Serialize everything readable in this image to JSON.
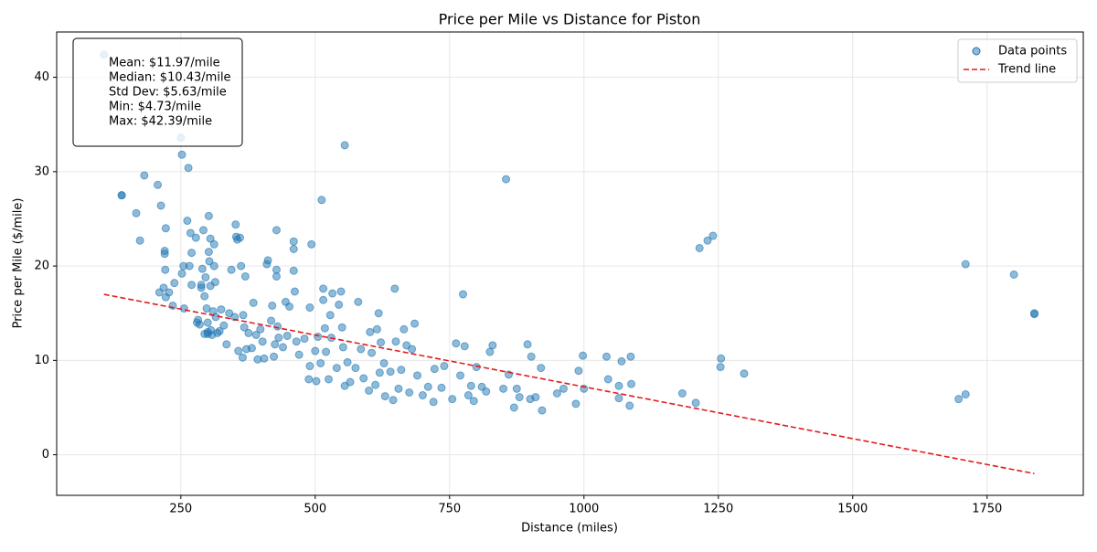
{
  "chart_data": {
    "type": "scatter",
    "title": "Price per Mile vs Distance for Piston",
    "x_label": "Distance (miles)",
    "y_label": "Price per Mile ($/mile)",
    "xlim": [
      19,
      1929
    ],
    "ylim": [
      -4.3,
      44.8
    ],
    "xticks": [
      250,
      500,
      750,
      1000,
      1250,
      1500,
      1750
    ],
    "yticks": [
      0,
      10,
      20,
      30,
      40
    ],
    "grid": true,
    "legend": "upper right",
    "stats": [
      "Mean: $11.97/mile",
      "Median: $10.43/mile",
      "Std Dev: $5.63/mile",
      "Min: $4.73/mile",
      "Max: $42.39/mile"
    ],
    "series": [
      {
        "name": "Data points",
        "type": "scatter",
        "color": "#1f77b4",
        "x": [
          107,
          140,
          140,
          167,
          174,
          182,
          207,
          213,
          210,
          220,
          220,
          222,
          218,
          221,
          222,
          228,
          235,
          238,
          252,
          255,
          250,
          252,
          256,
          262,
          264,
          266,
          268,
          270,
          270,
          278,
          280,
          282,
          285,
          288,
          288,
          290,
          292,
          294,
          294,
          296,
          298,
          300,
          300,
          300,
          302,
          302,
          303,
          305,
          305,
          306,
          308,
          310,
          312,
          312,
          314,
          315,
          318,
          322,
          325,
          330,
          335,
          340,
          344,
          350,
          352,
          353,
          355,
          357,
          360,
          362,
          365,
          366,
          368,
          370,
          372,
          376,
          382,
          385,
          390,
          393,
          398,
          402,
          405,
          410,
          412,
          418,
          420,
          423,
          425,
          428,
          428,
          428,
          430,
          432,
          440,
          445,
          448,
          452,
          460,
          460,
          460,
          462,
          465,
          470,
          480,
          488,
          490,
          490,
          493,
          500,
          502,
          505,
          510,
          512,
          515,
          515,
          518,
          520,
          525,
          528,
          530,
          532,
          540,
          544,
          548,
          550,
          552,
          555,
          555,
          560,
          565,
          575,
          580,
          585,
          590,
          600,
          602,
          605,
          612,
          615,
          618,
          620,
          622,
          628,
          630,
          640,
          645,
          648,
          650,
          655,
          660,
          665,
          670,
          675,
          680,
          685,
          690,
          700,
          710,
          720,
          722,
          735,
          740,
          755,
          762,
          770,
          775,
          778,
          785,
          790,
          795,
          800,
          810,
          818,
          825,
          830,
          850,
          855,
          860,
          870,
          875,
          880,
          895,
          900,
          902,
          910,
          920,
          922,
          950,
          962,
          985,
          990,
          998,
          1000,
          1042,
          1045,
          1065,
          1070,
          1065,
          1085,
          1087,
          1088,
          1183,
          1208,
          1215,
          1230,
          1240,
          1255,
          1254,
          1298,
          1697,
          1710,
          1710,
          1800,
          1838,
          1838
        ],
        "values": [
          42.4,
          27.5,
          27.5,
          25.6,
          22.7,
          29.6,
          28.6,
          26.4,
          17.2,
          21.6,
          21.3,
          24,
          17.7,
          19.6,
          16.7,
          17.2,
          15.8,
          18.2,
          19.2,
          20,
          33.6,
          31.8,
          15.5,
          24.8,
          30.4,
          20,
          23.5,
          21.4,
          18,
          23,
          14,
          14.3,
          13.8,
          18,
          17.7,
          19.7,
          23.8,
          12.8,
          16.8,
          18.8,
          15.5,
          12.8,
          14,
          13,
          25.3,
          21.5,
          20.5,
          22.9,
          17.9,
          13.2,
          12.7,
          15.2,
          22.3,
          20,
          18.3,
          14.6,
          12.9,
          13.1,
          15.4,
          13.7,
          11.7,
          15,
          19.6,
          14.6,
          24.4,
          23.1,
          22.8,
          11,
          23,
          20,
          10.3,
          14.8,
          13.5,
          18.9,
          11.2,
          12.9,
          11.3,
          16.1,
          12.7,
          10.1,
          13.3,
          12,
          10.2,
          20.2,
          20.6,
          14.2,
          15.8,
          10.4,
          11.7,
          19.6,
          23.8,
          18.9,
          13.6,
          12.4,
          11.4,
          16.2,
          12.6,
          15.7,
          22.6,
          21.8,
          19.5,
          17.3,
          12,
          10.6,
          12.3,
          8,
          15.6,
          9.4,
          22.3,
          11,
          7.8,
          12.5,
          9.7,
          27,
          17.6,
          16.4,
          13.4,
          10.9,
          8,
          14.8,
          12.4,
          17.1,
          9.2,
          15.9,
          17.3,
          13.5,
          11.4,
          32.8,
          7.3,
          9.8,
          7.7,
          9.2,
          16.2,
          11.2,
          8.1,
          6.8,
          13,
          10.8,
          7.4,
          13.3,
          15,
          8.7,
          11.9,
          9.7,
          6.2,
          8.8,
          5.8,
          17.6,
          12,
          7,
          9,
          13.3,
          11.6,
          6.6,
          11.2,
          13.9,
          8.4,
          6.3,
          7.2,
          5.6,
          9.1,
          7.1,
          9.4,
          5.9,
          11.8,
          8.4,
          17,
          11.5,
          6.3,
          7.3,
          5.7,
          9.3,
          7.2,
          6.7,
          10.9,
          11.6,
          7,
          29.2,
          8.5,
          5,
          7,
          6.1,
          11.7,
          5.9,
          10.4,
          6.1,
          9.2,
          4.7,
          6.5,
          7,
          5.4,
          8.9,
          10.5,
          7,
          10.4,
          8,
          7.3,
          9.9,
          6,
          5.2,
          10.4,
          7.5,
          6.5,
          5.5,
          21.9,
          22.7,
          23.2,
          10.2,
          9.3,
          8.6,
          5.9,
          6.4,
          20.2,
          19.1,
          15,
          14.9
        ]
      },
      {
        "name": "Trend line",
        "type": "line",
        "color": "#e41a1c",
        "dashed": true,
        "x": [
          107,
          1838
        ],
        "values": [
          17.0,
          -2.0
        ]
      }
    ]
  }
}
